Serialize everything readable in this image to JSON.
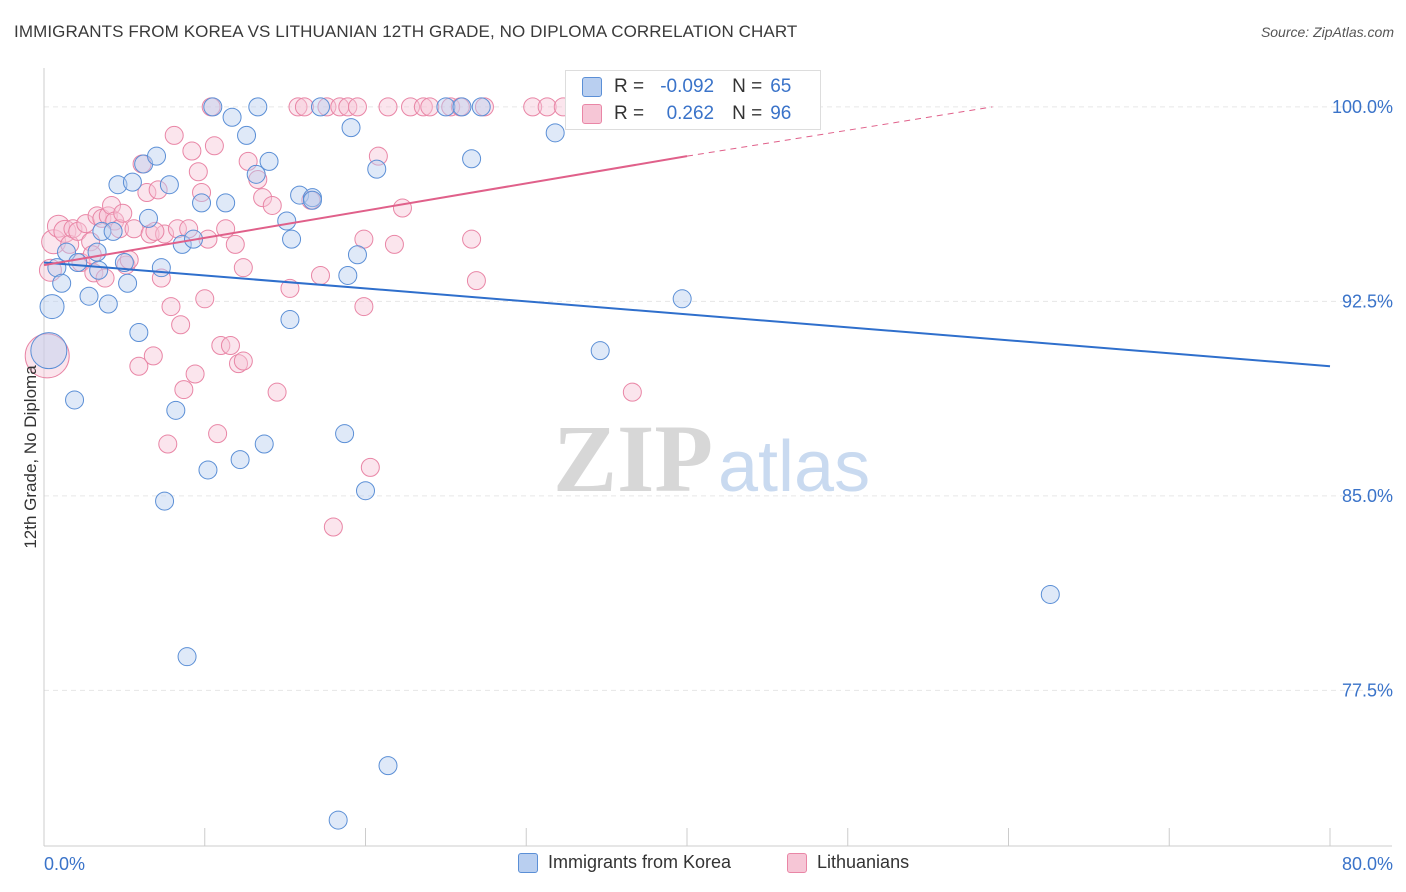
{
  "title": "IMMIGRANTS FROM KOREA VS LITHUANIAN 12TH GRADE, NO DIPLOMA CORRELATION CHART",
  "source": "Source: ZipAtlas.com",
  "watermark": {
    "zip": "ZIP",
    "atlas": "atlas"
  },
  "colors": {
    "blue": "#5b8fd6",
    "blue_fill": "#b9cff0",
    "blue_line": "#2f6fcc",
    "pink": "#e986a6",
    "pink_fill": "#f6c6d6",
    "pink_line": "#e0608a",
    "axis_text": "#3a73c9"
  },
  "stats": [
    {
      "r_label": "R =",
      "r_value": "-0.092",
      "n_label": "N =",
      "n_value": "65"
    },
    {
      "r_label": "R =",
      "r_value": "0.262",
      "n_label": "N =",
      "n_value": "96"
    }
  ],
  "legend": [
    {
      "label": "Immigrants from Korea"
    },
    {
      "label": "Lithuanians"
    }
  ],
  "chart_data": {
    "type": "scatter",
    "xlabel": "",
    "ylabel": "12th Grade, No Diploma",
    "xlim": [
      0,
      80
    ],
    "ylim": [
      71.5,
      101.5
    ],
    "x_tick_labels": [
      "0.0%",
      "80.0%"
    ],
    "y_ticks": [
      77.5,
      85.0,
      92.5,
      100.0
    ],
    "y_tick_labels": [
      "77.5%",
      "85.0%",
      "92.5%",
      "100.0%"
    ],
    "grid": true,
    "legend_position": "bottom",
    "series": [
      {
        "name": "Immigrants from Korea",
        "trend": {
          "x": [
            0,
            80
          ],
          "y": [
            94.0,
            90.0
          ]
        },
        "points": [
          [
            0.3,
            90.6
          ],
          [
            0.5,
            92.3
          ],
          [
            0.8,
            93.8
          ],
          [
            1.1,
            93.2
          ],
          [
            1.4,
            94.4
          ],
          [
            1.9,
            88.7
          ],
          [
            2.1,
            94.0
          ],
          [
            2.8,
            92.7
          ],
          [
            3.3,
            94.4
          ],
          [
            3.4,
            93.7
          ],
          [
            3.6,
            95.2
          ],
          [
            4.0,
            92.4
          ],
          [
            4.3,
            95.2
          ],
          [
            4.6,
            97.0
          ],
          [
            5.0,
            94.0
          ],
          [
            5.2,
            93.2
          ],
          [
            5.5,
            97.1
          ],
          [
            5.9,
            91.3
          ],
          [
            6.2,
            97.8
          ],
          [
            6.5,
            95.7
          ],
          [
            7.0,
            98.1
          ],
          [
            7.3,
            93.8
          ],
          [
            7.5,
            84.8
          ],
          [
            7.8,
            97.0
          ],
          [
            8.2,
            88.3
          ],
          [
            8.6,
            94.7
          ],
          [
            8.9,
            78.8
          ],
          [
            9.3,
            94.9
          ],
          [
            9.8,
            96.3
          ],
          [
            10.2,
            86.0
          ],
          [
            10.5,
            100.0
          ],
          [
            11.3,
            96.3
          ],
          [
            11.7,
            99.6
          ],
          [
            12.2,
            86.4
          ],
          [
            12.6,
            98.9
          ],
          [
            13.2,
            97.4
          ],
          [
            13.3,
            100.0
          ],
          [
            13.7,
            87.0
          ],
          [
            14.0,
            97.9
          ],
          [
            15.1,
            95.6
          ],
          [
            15.3,
            91.8
          ],
          [
            15.4,
            94.9
          ],
          [
            15.9,
            96.6
          ],
          [
            16.7,
            96.5
          ],
          [
            16.7,
            96.4
          ],
          [
            17.2,
            100.0
          ],
          [
            18.3,
            72.5
          ],
          [
            18.7,
            87.4
          ],
          [
            18.9,
            93.5
          ],
          [
            19.1,
            99.2
          ],
          [
            19.5,
            94.3
          ],
          [
            20.0,
            85.2
          ],
          [
            20.7,
            97.6
          ],
          [
            21.4,
            74.6
          ],
          [
            25.0,
            100.0
          ],
          [
            26.0,
            100.0
          ],
          [
            26.6,
            98.0
          ],
          [
            27.2,
            100.0
          ],
          [
            31.8,
            99.0
          ],
          [
            34.0,
            100.0
          ],
          [
            34.6,
            90.6
          ],
          [
            39.0,
            100.0
          ],
          [
            39.7,
            92.6
          ],
          [
            62.6,
            81.2
          ],
          [
            40.0,
            100.0
          ]
        ],
        "sizes": [
          18,
          12,
          9,
          9,
          9,
          9,
          9,
          9,
          9,
          9,
          9,
          9,
          9,
          9,
          9,
          9,
          9,
          9,
          9,
          9,
          9,
          9,
          9,
          9,
          9,
          9,
          9,
          9,
          9,
          9,
          9,
          9,
          9,
          9,
          9,
          9,
          9,
          9,
          9,
          9,
          9,
          9,
          9,
          9,
          9,
          9,
          9,
          9,
          9,
          9,
          9,
          9,
          9,
          9,
          9,
          9,
          9,
          9,
          9,
          9,
          9,
          9,
          9,
          9,
          9
        ]
      },
      {
        "name": "Lithuanians",
        "trend": {
          "x": [
            0,
            40
          ],
          "y": [
            93.9,
            98.1
          ]
        },
        "trend_dashed": {
          "x": [
            40,
            59
          ],
          "y": [
            98.1,
            100.0
          ]
        },
        "points": [
          [
            0.2,
            90.4
          ],
          [
            0.4,
            93.7
          ],
          [
            0.6,
            94.8
          ],
          [
            0.9,
            95.4
          ],
          [
            1.3,
            95.2
          ],
          [
            1.6,
            94.7
          ],
          [
            1.8,
            95.3
          ],
          [
            2.1,
            95.2
          ],
          [
            2.3,
            94.0
          ],
          [
            2.6,
            95.5
          ],
          [
            2.9,
            94.8
          ],
          [
            3.1,
            93.6
          ],
          [
            3.3,
            95.8
          ],
          [
            3.6,
            95.7
          ],
          [
            3.8,
            93.4
          ],
          [
            4.0,
            95.8
          ],
          [
            4.2,
            96.2
          ],
          [
            4.4,
            95.6
          ],
          [
            4.7,
            95.3
          ],
          [
            4.9,
            95.9
          ],
          [
            5.1,
            93.9
          ],
          [
            5.3,
            94.1
          ],
          [
            5.6,
            95.3
          ],
          [
            5.9,
            90.0
          ],
          [
            6.1,
            97.8
          ],
          [
            6.4,
            96.7
          ],
          [
            6.6,
            95.1
          ],
          [
            6.8,
            90.4
          ],
          [
            7.1,
            96.8
          ],
          [
            7.3,
            93.4
          ],
          [
            7.5,
            95.1
          ],
          [
            7.7,
            87.0
          ],
          [
            7.9,
            92.3
          ],
          [
            8.1,
            98.9
          ],
          [
            8.3,
            95.3
          ],
          [
            8.5,
            91.6
          ],
          [
            8.7,
            89.1
          ],
          [
            9.0,
            95.3
          ],
          [
            9.2,
            98.3
          ],
          [
            9.4,
            89.7
          ],
          [
            9.6,
            97.5
          ],
          [
            9.8,
            96.7
          ],
          [
            10.0,
            92.6
          ],
          [
            10.2,
            94.9
          ],
          [
            10.4,
            100.0
          ],
          [
            10.6,
            98.5
          ],
          [
            10.8,
            87.4
          ],
          [
            11.0,
            90.8
          ],
          [
            11.3,
            95.3
          ],
          [
            11.6,
            90.8
          ],
          [
            11.9,
            94.7
          ],
          [
            12.1,
            90.1
          ],
          [
            12.4,
            93.8
          ],
          [
            12.7,
            97.9
          ],
          [
            13.3,
            97.2
          ],
          [
            13.6,
            96.5
          ],
          [
            14.2,
            96.2
          ],
          [
            14.5,
            89.0
          ],
          [
            15.3,
            93.0
          ],
          [
            15.8,
            100.0
          ],
          [
            16.2,
            100.0
          ],
          [
            16.6,
            96.4
          ],
          [
            17.2,
            93.5
          ],
          [
            17.6,
            100.0
          ],
          [
            18.0,
            83.8
          ],
          [
            18.4,
            100.0
          ],
          [
            18.9,
            100.0
          ],
          [
            19.5,
            100.0
          ],
          [
            19.9,
            92.3
          ],
          [
            20.3,
            86.1
          ],
          [
            20.8,
            98.1
          ],
          [
            21.4,
            100.0
          ],
          [
            21.8,
            94.7
          ],
          [
            22.3,
            96.1
          ],
          [
            22.8,
            100.0
          ],
          [
            23.6,
            100.0
          ],
          [
            24.0,
            100.0
          ],
          [
            25.3,
            100.0
          ],
          [
            25.9,
            100.0
          ],
          [
            26.6,
            94.9
          ],
          [
            26.9,
            93.3
          ],
          [
            27.4,
            100.0
          ],
          [
            30.4,
            100.0
          ],
          [
            31.3,
            100.0
          ],
          [
            32.3,
            100.0
          ],
          [
            33.5,
            100.0
          ],
          [
            34.8,
            100.0
          ],
          [
            36.1,
            100.0
          ],
          [
            36.6,
            89.0
          ],
          [
            38.0,
            100.0
          ],
          [
            34.0,
            100.0
          ],
          [
            37.0,
            100.0
          ],
          [
            3.0,
            94.3
          ],
          [
            6.9,
            95.2
          ],
          [
            12.4,
            90.2
          ],
          [
            19.9,
            94.9
          ]
        ],
        "sizes": [
          22,
          11,
          12,
          11,
          11,
          9,
          9,
          9,
          9,
          9,
          9,
          9,
          9,
          9,
          9,
          9,
          9,
          9,
          9,
          9,
          9,
          9,
          9,
          9,
          9,
          9,
          9,
          9,
          9,
          9,
          9,
          9,
          9,
          9,
          9,
          9,
          9,
          9,
          9,
          9,
          9,
          9,
          9,
          9,
          9,
          9,
          9,
          9,
          9,
          9,
          9,
          9,
          9,
          9,
          9,
          9,
          9,
          9,
          9,
          9,
          9,
          9,
          9,
          9,
          9,
          9,
          9,
          9,
          9,
          9,
          9,
          9,
          9,
          9,
          9,
          9,
          9,
          9,
          9,
          9,
          9,
          9,
          9,
          9,
          9,
          9,
          9,
          9,
          9,
          9,
          9,
          9,
          9,
          9,
          9,
          9
        ]
      }
    ]
  }
}
